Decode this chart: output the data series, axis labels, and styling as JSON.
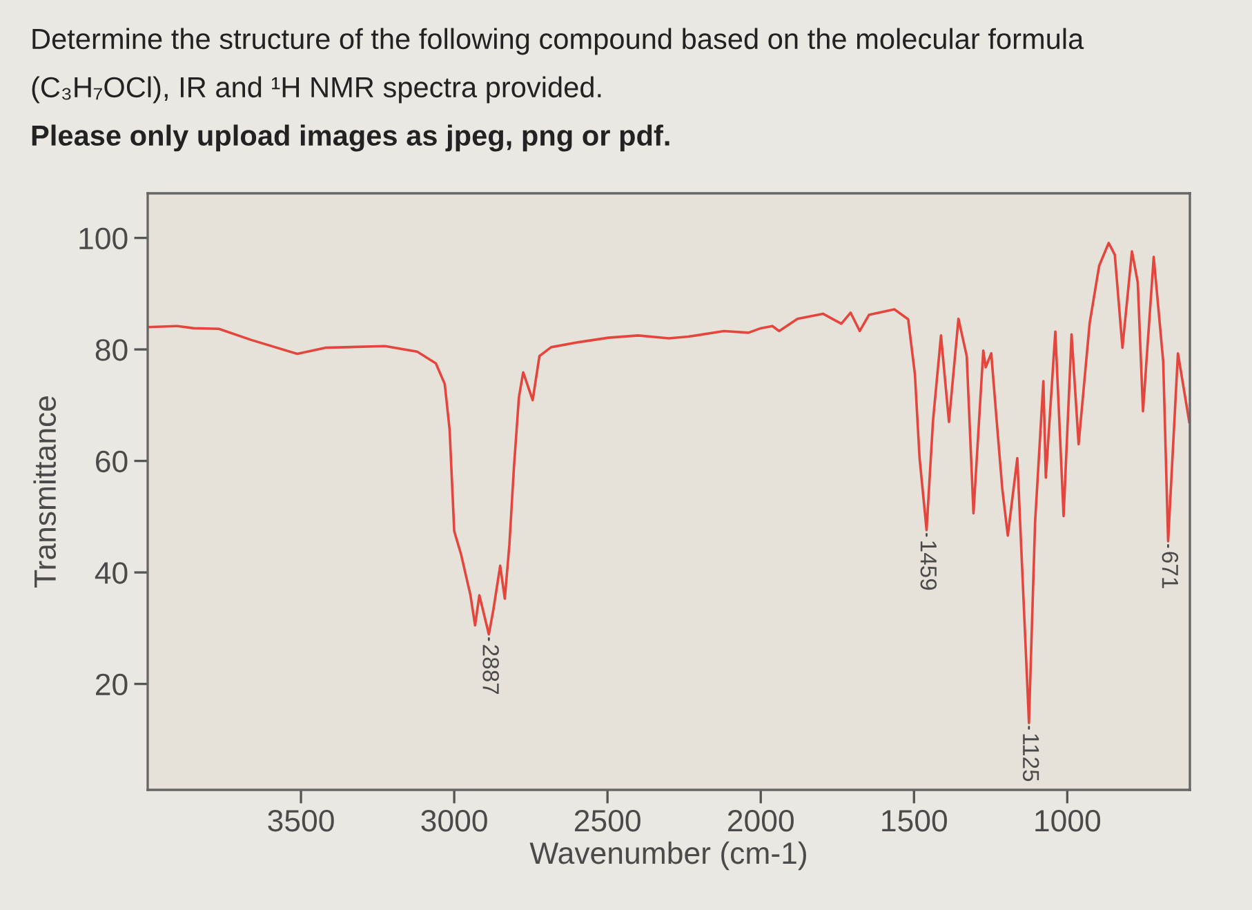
{
  "chart_data": {
    "type": "line",
    "title": "Determine the structure of the following compound based on the molecular formula (C₃H₇OCl), IR and ¹H NMR spectra provided.",
    "subtitle": "Please only upload images as jpeg, png or pdf.",
    "xlabel": "Wavenumber (cm-1)",
    "ylabel": "Transmittance",
    "x": [
      4000,
      3903,
      3850,
      3768,
      3662,
      3512,
      3421,
      3226,
      3121,
      3060,
      3031,
      3015,
      3000,
      2978,
      2947,
      2932,
      2918,
      2887,
      2872,
      2850,
      2835,
      2820,
      2805,
      2789,
      2775,
      2744,
      2722,
      2684,
      2594,
      2497,
      2400,
      2300,
      2236,
      2200,
      2120,
      2040,
      2000,
      1962,
      1940,
      1880,
      1797,
      1737,
      1707,
      1677,
      1647,
      1564,
      1519,
      1497,
      1482,
      1459,
      1438,
      1412,
      1386,
      1355,
      1328,
      1306,
      1274,
      1266,
      1248,
      1230,
      1212,
      1194,
      1163,
      1125,
      1105,
      1078,
      1070,
      1039,
      1012,
      986,
      963,
      927,
      896,
      865,
      845,
      820,
      789,
      770,
      753,
      718,
      687,
      671,
      639,
      602
    ],
    "series": [
      {
        "color": "#e4463d",
        "values": [
          84.0,
          84.2,
          83.8,
          83.7,
          81.7,
          79.2,
          80.3,
          80.6,
          79.6,
          77.5,
          73.8,
          65.6,
          47.4,
          43.3,
          35.9,
          30.5,
          35.9,
          28.9,
          33.4,
          41.2,
          35.3,
          45.0,
          59.0,
          71.4,
          75.9,
          70.9,
          78.8,
          80.4,
          81.3,
          82.1,
          82.5,
          82.0,
          82.3,
          82.6,
          83.3,
          83.0,
          83.8,
          84.2,
          83.3,
          85.5,
          86.4,
          84.6,
          86.6,
          83.3,
          86.2,
          87.2,
          85.4,
          75.5,
          60.6,
          47.6,
          67.2,
          82.5,
          67.0,
          85.5,
          78.8,
          50.6,
          79.8,
          76.8,
          79.3,
          67.0,
          55.0,
          46.6,
          60.5,
          13.0,
          49.0,
          74.3,
          57.0,
          83.2,
          50.1,
          82.7,
          63.0,
          84.7,
          95.0,
          99.1,
          97.0,
          80.3,
          97.6,
          92.0,
          68.9,
          96.6,
          77.8,
          45.6,
          79.3,
          67.0
        ]
      }
    ],
    "xlim": [
      4000,
      600
    ],
    "ylim": [
      1,
      108
    ],
    "xticks": [
      3500,
      3000,
      2500,
      2000,
      1500,
      1000
    ],
    "yticks": [
      20,
      40,
      60,
      80,
      100
    ],
    "annotations": [
      {
        "text": "2887",
        "x": 2887,
        "y": 28.9
      },
      {
        "text": "1459",
        "x": 1459,
        "y": 47.6
      },
      {
        "text": "1125",
        "x": 1125,
        "y": 13.0
      },
      {
        "text": "671",
        "x": 671,
        "y": 45.6
      }
    ],
    "grid": false,
    "line_style": "solid"
  }
}
